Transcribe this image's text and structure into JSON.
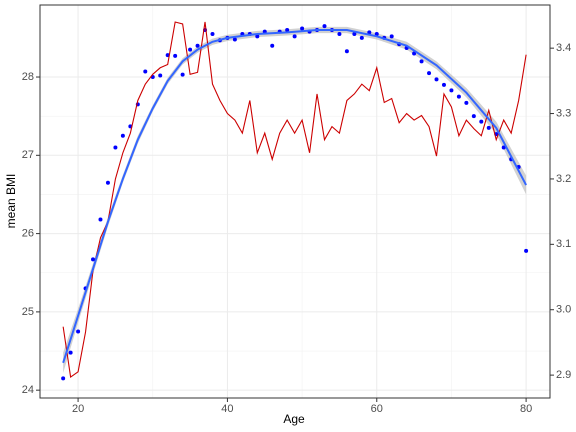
{
  "chart_data": {
    "type": "scatter",
    "xlabel": "Age",
    "ylabel": "mean BMI",
    "xlim": [
      14.9,
      83.2
    ],
    "xticks": [
      20,
      40,
      60,
      80
    ],
    "ylim": [
      23.9,
      28.92
    ],
    "yticks": [
      24,
      25,
      26,
      27,
      28
    ],
    "y2lim": [
      2.865,
      3.466
    ],
    "y2ticks": [
      2.9,
      {
        "value": 3,
        "label": "3.0"
      },
      3.1,
      3.2,
      3.3,
      3.4
    ],
    "grid": true,
    "x": [
      18,
      19,
      20,
      21,
      22,
      23,
      24,
      25,
      26,
      27,
      28,
      29,
      30,
      31,
      32,
      33,
      34,
      35,
      36,
      37,
      38,
      39,
      40,
      41,
      42,
      43,
      44,
      45,
      46,
      47,
      48,
      49,
      50,
      51,
      52,
      53,
      54,
      55,
      56,
      57,
      58,
      59,
      60,
      61,
      62,
      63,
      64,
      65,
      66,
      67,
      68,
      69,
      70,
      71,
      72,
      73,
      74,
      75,
      76,
      77,
      78,
      79,
      80
    ],
    "series": [
      {
        "color": "#0000ff",
        "values": [
          24.15,
          24.48,
          24.75,
          25.3,
          25.67,
          26.18,
          26.65,
          27.1,
          27.25,
          27.37,
          27.65,
          28.07,
          28.0,
          28.02,
          28.28,
          28.27,
          28.03,
          28.35,
          28.4,
          28.6,
          28.55,
          28.47,
          28.5,
          28.48,
          28.55,
          28.55,
          28.52,
          28.58,
          28.4,
          28.58,
          28.6,
          28.52,
          28.62,
          28.58,
          28.6,
          28.65,
          28.6,
          28.55,
          28.33,
          28.55,
          28.5,
          28.57,
          28.55,
          28.5,
          28.52,
          28.42,
          28.37,
          28.3,
          28.2,
          28.05,
          27.97,
          27.9,
          27.83,
          27.75,
          27.67,
          27.5,
          27.43,
          27.35,
          27.27,
          27.1,
          26.95,
          26.85,
          25.78
        ]
      },
      {
        "color": "#cc0000",
        "axis": "y2",
        "values": [
          2.974,
          2.897,
          2.905,
          2.966,
          3.06,
          3.11,
          3.135,
          3.2,
          3.24,
          3.27,
          3.32,
          3.345,
          3.36,
          3.37,
          3.375,
          3.44,
          3.437,
          3.36,
          3.363,
          3.44,
          3.345,
          3.32,
          3.3,
          3.29,
          3.27,
          3.32,
          3.24,
          3.27,
          3.23,
          3.27,
          3.29,
          3.27,
          3.29,
          3.24,
          3.33,
          3.26,
          3.28,
          3.27,
          3.32,
          3.33,
          3.345,
          3.335,
          3.37,
          3.317,
          3.323,
          3.286,
          3.3,
          3.29,
          3.297,
          3.28,
          3.235,
          3.33,
          3.31,
          3.266,
          3.29,
          3.277,
          3.266,
          3.305,
          3.26,
          3.29,
          3.27,
          3.32,
          3.39
        ]
      }
    ],
    "smooth": {
      "color": "#3366ff",
      "band_color": "#bdbdbd",
      "x": [
        18,
        20,
        22,
        24,
        26,
        28,
        30,
        32,
        34,
        36,
        38,
        40,
        44,
        48,
        52,
        56,
        60,
        64,
        68,
        72,
        76,
        80
      ],
      "values": [
        24.35,
        24.95,
        25.55,
        26.15,
        26.7,
        27.2,
        27.6,
        27.95,
        28.2,
        28.35,
        28.45,
        28.5,
        28.55,
        28.57,
        28.6,
        28.6,
        28.52,
        28.4,
        28.15,
        27.8,
        27.35,
        26.62
      ],
      "lower": [
        24.22,
        24.86,
        25.48,
        26.09,
        26.65,
        27.15,
        27.56,
        27.91,
        28.16,
        28.31,
        28.41,
        28.46,
        28.51,
        28.53,
        28.56,
        28.56,
        28.48,
        28.35,
        28.1,
        27.74,
        27.27,
        26.5
      ],
      "upper": [
        24.48,
        25.04,
        25.62,
        26.21,
        26.75,
        27.25,
        27.64,
        27.99,
        28.24,
        28.39,
        28.49,
        28.54,
        28.59,
        28.61,
        28.64,
        28.64,
        28.56,
        28.45,
        28.2,
        27.86,
        27.43,
        26.74
      ]
    }
  }
}
